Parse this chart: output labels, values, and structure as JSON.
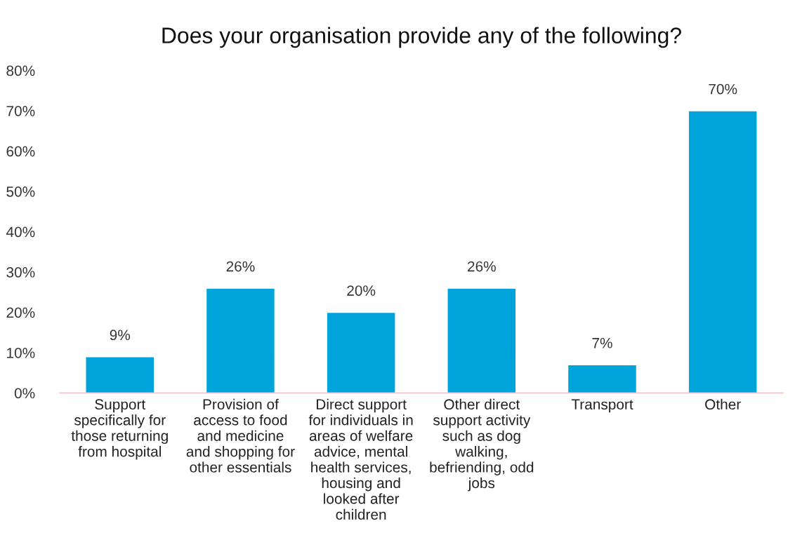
{
  "chart_data": {
    "type": "bar",
    "title": "Does your organisation provide any of the following?",
    "categories": [
      "Support\nspecifically for\nthose returning\nfrom hospital",
      "Provision of\naccess to food\nand medicine\nand shopping for\nother essentials",
      "Direct support\nfor individuals in\nareas of welfare\nadvice, mental\nhealth services,\nhousing and\nlooked after\nchildren",
      "Other direct\nsupport activity\nsuch as dog\nwalking,\nbefriending, odd\njobs",
      "Transport",
      "Other"
    ],
    "values": [
      9,
      26,
      20,
      26,
      7,
      70
    ],
    "value_labels": [
      "9%",
      "26%",
      "20%",
      "26%",
      "7%",
      "70%"
    ],
    "color": "#00a3da",
    "ylim": [
      0,
      80
    ],
    "yticks": [
      {
        "value": 0,
        "label": "0%"
      },
      {
        "value": 10,
        "label": "10%"
      },
      {
        "value": 20,
        "label": "20%"
      },
      {
        "value": 30,
        "label": "30%"
      },
      {
        "value": 40,
        "label": "40%"
      },
      {
        "value": 50,
        "label": "50%"
      },
      {
        "value": 60,
        "label": "60%"
      },
      {
        "value": 70,
        "label": "70%"
      },
      {
        "value": 80,
        "label": "80%"
      }
    ],
    "grid": false
  }
}
